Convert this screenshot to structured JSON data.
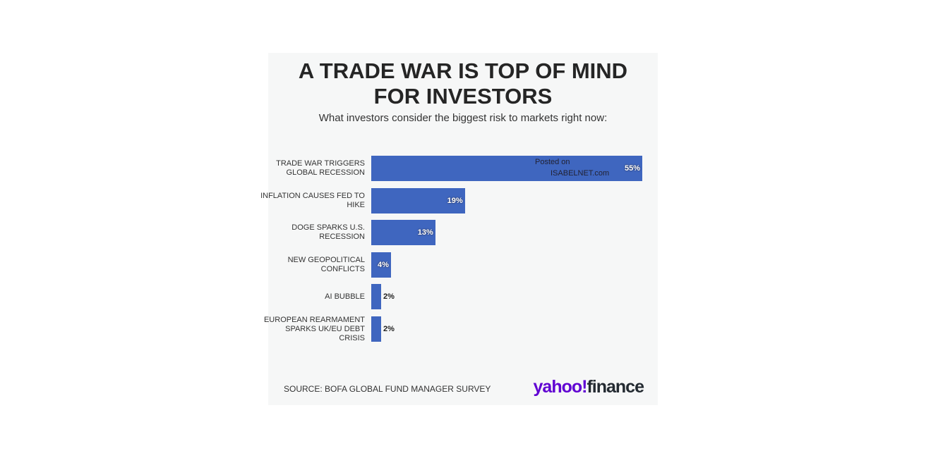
{
  "chart_data": {
    "type": "bar",
    "orientation": "horizontal",
    "title": "A TRADE WAR IS TOP OF MIND FOR INVESTORS",
    "subtitle": "What investors consider the biggest risk to markets right now:",
    "categories": [
      "TRADE WAR TRIGGERS GLOBAL RECESSION",
      "INFLATION CAUSES FED TO HIKE",
      "DOGE SPARKS U.S. RECESSION",
      "NEW GEOPOLITICAL CONFLICTS",
      "AI BUBBLE",
      "EUROPEAN REARMAMENT SPARKS UK/EU DEBT CRISIS"
    ],
    "values": [
      55,
      19,
      13,
      4,
      2,
      2
    ],
    "value_labels": [
      "55%",
      "19%",
      "13%",
      "4%",
      "2%",
      "2%"
    ],
    "color": "#3f66bf",
    "xlim": [
      0,
      55
    ],
    "source": "SOURCE: BOFA GLOBAL FUND MANAGER SURVEY",
    "watermark": [
      "Posted on",
      "ISABELNET.com"
    ],
    "logo": [
      "yahoo!",
      "finance"
    ]
  }
}
